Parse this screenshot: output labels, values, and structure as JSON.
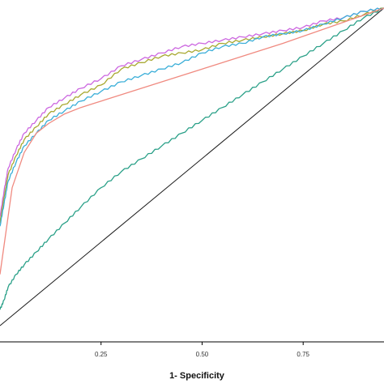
{
  "chart_data": {
    "type": "line",
    "title": "",
    "xlabel": "1- Specificity",
    "ylabel": "",
    "xlim": [
      0,
      0.95
    ],
    "ylim": [
      0,
      1
    ],
    "x_ticks": [
      {
        "value": 0.25,
        "label": "0.25"
      },
      {
        "value": 0.5,
        "label": "0.50"
      },
      {
        "value": 0.75,
        "label": "0.75"
      }
    ],
    "grid": false,
    "legend": "none",
    "reference_line": {
      "x": [
        0,
        0.95
      ],
      "y": [
        0,
        0.99
      ],
      "color": "#1a1a1a"
    },
    "series": [
      {
        "color": "#cc66e0",
        "x": [
          0,
          0.01,
          0.02,
          0.04,
          0.06,
          0.09,
          0.12,
          0.16,
          0.2,
          0.25,
          0.3,
          0.35,
          0.4,
          0.45,
          0.5,
          0.55,
          0.6,
          0.65,
          0.7,
          0.75,
          0.8,
          0.85,
          0.9,
          0.95
        ],
        "y": [
          0.34,
          0.42,
          0.49,
          0.55,
          0.6,
          0.64,
          0.68,
          0.71,
          0.74,
          0.77,
          0.81,
          0.83,
          0.85,
          0.87,
          0.88,
          0.89,
          0.9,
          0.91,
          0.92,
          0.93,
          0.95,
          0.96,
          0.98,
          0.99
        ]
      },
      {
        "color": "#a8a830",
        "x": [
          0,
          0.01,
          0.02,
          0.04,
          0.06,
          0.09,
          0.12,
          0.16,
          0.2,
          0.25,
          0.3,
          0.35,
          0.4,
          0.45,
          0.5,
          0.55,
          0.6,
          0.65,
          0.7,
          0.75,
          0.8,
          0.85,
          0.9,
          0.95
        ],
        "y": [
          0.32,
          0.4,
          0.47,
          0.53,
          0.58,
          0.62,
          0.66,
          0.69,
          0.72,
          0.75,
          0.8,
          0.82,
          0.84,
          0.85,
          0.86,
          0.88,
          0.89,
          0.9,
          0.91,
          0.92,
          0.94,
          0.95,
          0.97,
          0.99
        ]
      },
      {
        "color": "#3aaed8",
        "x": [
          0,
          0.01,
          0.02,
          0.04,
          0.06,
          0.09,
          0.12,
          0.16,
          0.2,
          0.25,
          0.3,
          0.35,
          0.4,
          0.45,
          0.5,
          0.55,
          0.6,
          0.65,
          0.7,
          0.75,
          0.8,
          0.85,
          0.9,
          0.95
        ],
        "y": [
          0.31,
          0.38,
          0.45,
          0.51,
          0.56,
          0.6,
          0.64,
          0.67,
          0.7,
          0.73,
          0.76,
          0.78,
          0.8,
          0.82,
          0.85,
          0.87,
          0.88,
          0.9,
          0.91,
          0.92,
          0.94,
          0.96,
          0.98,
          0.99
        ]
      },
      {
        "color": "#2aa088",
        "x": [
          0,
          0.01,
          0.02,
          0.04,
          0.06,
          0.09,
          0.12,
          0.16,
          0.2,
          0.25,
          0.3,
          0.35,
          0.4,
          0.45,
          0.5,
          0.55,
          0.6,
          0.65,
          0.7,
          0.75,
          0.8,
          0.85,
          0.9,
          0.95
        ],
        "y": [
          0.05,
          0.08,
          0.12,
          0.16,
          0.19,
          0.23,
          0.27,
          0.32,
          0.37,
          0.43,
          0.48,
          0.52,
          0.56,
          0.6,
          0.64,
          0.68,
          0.72,
          0.76,
          0.8,
          0.84,
          0.88,
          0.92,
          0.96,
          0.99
        ]
      },
      {
        "color": "#f08a80",
        "x": [
          0,
          0.03,
          0.06,
          0.09,
          0.12,
          0.16,
          0.2,
          0.3,
          0.5,
          0.7,
          0.95
        ],
        "y": [
          0.16,
          0.43,
          0.54,
          0.6,
          0.63,
          0.66,
          0.68,
          0.72,
          0.8,
          0.88,
          0.99
        ]
      }
    ]
  }
}
